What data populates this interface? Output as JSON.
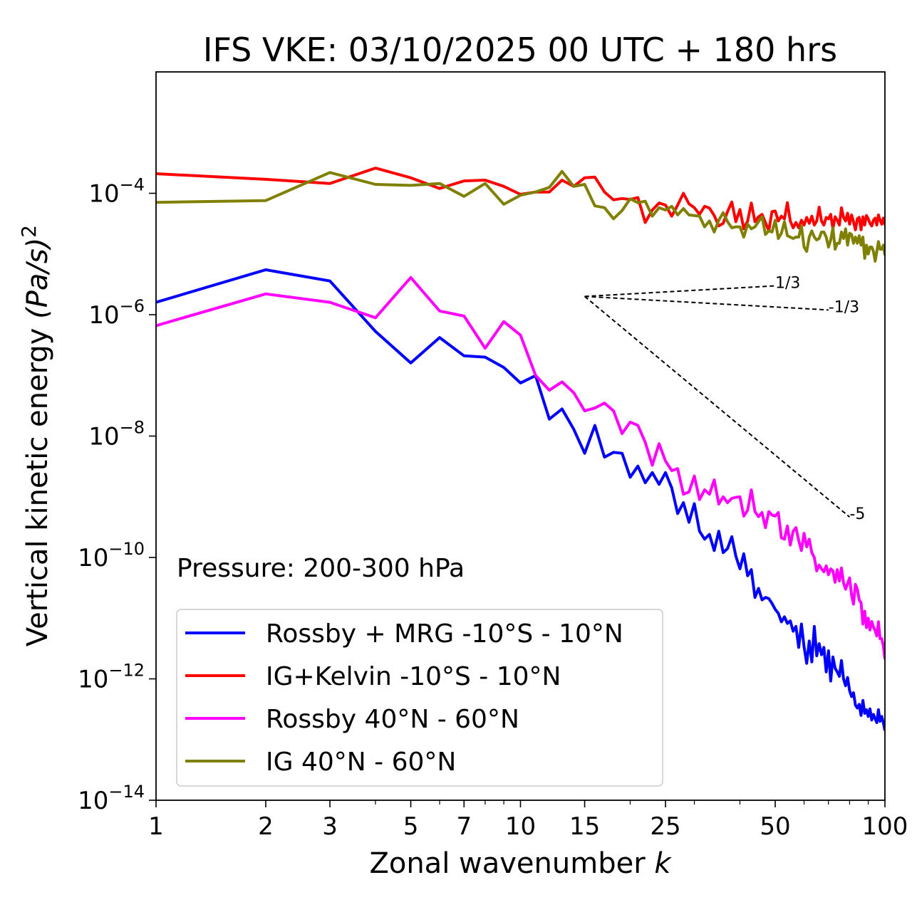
{
  "chart_data": {
    "type": "line",
    "title": "IFS VKE: 03/10/2025 00 UTC + 180 hrs",
    "xlabel_text": "Zonal wavenumber ",
    "xlabel_var": "k",
    "ylabel_text": "Vertical kinetic energy ",
    "ylabel_unit": "(Pa/s)",
    "ylabel_sup": "2",
    "xscale": "log",
    "yscale": "log",
    "xlim": [
      1,
      100
    ],
    "ylim": [
      1e-14,
      0.01
    ],
    "x_ticks": [
      1,
      2,
      3,
      5,
      7,
      10,
      15,
      25,
      50,
      100
    ],
    "x_tick_labels": [
      "1",
      "2",
      "3",
      "5",
      "7",
      "10",
      "15",
      "25",
      "50",
      "100"
    ],
    "y_ticks": [
      {
        "value": 1e-14,
        "base": "10",
        "exp": "−14"
      },
      {
        "value": 1e-12,
        "base": "10",
        "exp": "−12"
      },
      {
        "value": 1e-10,
        "base": "10",
        "exp": "−10"
      },
      {
        "value": 1e-08,
        "base": "10",
        "exp": "−8"
      },
      {
        "value": 1e-06,
        "base": "10",
        "exp": "−6"
      },
      {
        "value": 0.0001,
        "base": "10",
        "exp": "−4"
      }
    ],
    "annotation": "Pressure: 200-300 hPa",
    "legend_position": "lower-left",
    "series": [
      {
        "name": "Rossby + MRG -10°S - 10°N",
        "color": "#0000ff",
        "x": [
          1,
          2,
          3,
          4,
          5,
          6,
          7,
          8,
          9,
          10,
          11,
          12,
          13,
          14,
          15,
          16,
          17,
          18,
          19,
          20,
          21,
          22,
          23,
          24,
          25,
          26,
          27,
          28,
          29,
          30,
          31,
          32,
          33,
          34,
          35,
          36,
          37,
          38,
          39,
          40,
          41,
          42,
          43,
          44,
          45,
          46,
          47,
          48,
          49,
          50,
          51,
          52,
          53,
          54,
          55,
          56,
          57,
          58,
          59,
          60,
          61,
          62,
          63,
          64,
          65,
          66,
          67,
          68,
          69,
          70,
          71,
          72,
          73,
          74,
          75,
          76,
          77,
          78,
          79,
          80,
          81,
          82,
          83,
          84,
          85,
          86,
          87,
          88,
          89,
          90,
          91,
          92,
          93,
          94,
          95,
          96,
          97,
          98,
          99,
          100
        ],
        "y": [
          1.6e-06,
          5.5e-06,
          3.6e-06,
          5.3e-07,
          1.6e-07,
          4.2e-07,
          2.1e-07,
          2e-07,
          1.35e-07,
          7.5e-08,
          9.9e-08,
          1.9e-08,
          2.8e-08,
          1.3e-08,
          5.2e-09,
          1.5e-08,
          4.5e-09,
          5.4e-09,
          5.2e-09,
          2.1e-09,
          3.2e-09,
          1.7e-09,
          2.5e-09,
          1.6e-09,
          2.5e-09,
          1.4e-09,
          5.3e-10,
          8e-10,
          3.8e-10,
          7.7e-10,
          2.7e-10,
          2e-10,
          2.4e-10,
          1.3e-10,
          2.7e-10,
          1.2e-10,
          1.4e-10,
          2.2e-10,
          1.05e-10,
          6.5e-11,
          1.15e-10,
          5e-11,
          6.3e-11,
          2.2e-11,
          3.1e-11,
          2e-11,
          2.2e-11,
          2.1e-11,
          1.75e-11,
          1.4e-11,
          1.2e-11,
          8.7e-12,
          1.05e-11,
          8.2e-12,
          9e-12,
          6.1e-12,
          7.3e-12,
          3.3e-12,
          8e-12,
          3.4e-12,
          1.8e-12,
          4.2e-12,
          1.9e-12,
          7.3e-12,
          2.4e-12,
          3.8e-12,
          2.5e-12,
          3.3e-12,
          1.3e-12,
          2.9e-12,
          9.2e-13,
          2.3e-12,
          1.5e-12,
          1.3e-12,
          1.1e-12,
          2e-12,
          1e-12,
          7.7e-13,
          1.05e-12,
          6.4e-13,
          5.1e-13,
          5.9e-13,
          3.7e-13,
          3.3e-13,
          3.8e-13,
          2.5e-13,
          4.4e-13,
          2.7e-13,
          3.1e-13,
          2.4e-13,
          3.2e-13,
          2.1e-13,
          2.6e-13,
          2.2e-13,
          1.9e-13,
          3.1e-13,
          2e-13,
          2.4e-13,
          1.9e-13,
          1.4e-13
        ]
      },
      {
        "name": "IG+Kelvin -10°S - 10°N",
        "color": "#ff0000",
        "x": [
          1,
          2,
          3,
          4,
          5,
          6,
          7,
          8,
          9,
          10,
          11,
          12,
          13,
          14,
          15,
          16,
          17,
          18,
          19,
          20,
          21,
          22,
          23,
          24,
          25,
          26,
          27,
          28,
          29,
          30,
          31,
          32,
          33,
          34,
          35,
          36,
          37,
          38,
          39,
          40,
          41,
          42,
          43,
          44,
          45,
          46,
          47,
          48,
          49,
          50,
          51,
          52,
          53,
          54,
          55,
          56,
          57,
          58,
          59,
          60,
          61,
          62,
          63,
          64,
          65,
          66,
          67,
          68,
          69,
          70,
          71,
          72,
          73,
          74,
          75,
          76,
          77,
          78,
          79,
          80,
          81,
          82,
          83,
          84,
          85,
          86,
          87,
          88,
          89,
          90,
          91,
          92,
          93,
          94,
          95,
          96,
          97,
          98,
          99,
          100
        ],
        "y": [
          0.00021,
          0.00017,
          0.000145,
          0.00026,
          0.00018,
          0.00012,
          0.00016,
          0.000165,
          0.00013,
          9.6e-05,
          0.000105,
          0.000105,
          0.000165,
          0.00013,
          0.00018,
          0.000185,
          0.000105,
          7.8e-05,
          8.2e-05,
          7.9e-05,
          8.5e-05,
          3.3e-05,
          5.3e-05,
          6.9e-05,
          6.4e-05,
          4.2e-05,
          6.4e-05,
          0.0001,
          6.7e-05,
          5.8e-05,
          4.5e-05,
          6.1e-05,
          5.7e-05,
          4.3e-05,
          2.9e-05,
          3.2e-05,
          5e-05,
          7.2e-05,
          3.4e-05,
          5.4e-05,
          2.6e-05,
          3.5e-05,
          6.9e-05,
          3.4e-05,
          4.1e-05,
          4.5e-05,
          3.3e-05,
          2.4e-05,
          5e-05,
          5.1e-05,
          3.5e-05,
          4.2e-05,
          3.8e-05,
          7e-05,
          3.5e-05,
          2.7e-05,
          3.3e-05,
          2.7e-05,
          3.6e-05,
          3e-05,
          4e-05,
          3.2e-05,
          4.2e-05,
          3e-05,
          3.5e-05,
          5.9e-05,
          3.5e-05,
          3e-05,
          4e-05,
          3.8e-05,
          4.5e-05,
          2.6e-05,
          4.1e-05,
          3.6e-05,
          3e-05,
          5.8e-05,
          4e-05,
          3.5e-05,
          4.7e-05,
          3.1e-05,
          4.4e-05,
          3.4e-05,
          2.5e-05,
          3.8e-05,
          4e-05,
          2.5e-05,
          4.1e-05,
          3e-05,
          4.3e-05,
          3.8e-05,
          3.2e-05,
          2.9e-05,
          3.6e-05,
          3.9e-05,
          3e-05,
          4.4e-05,
          3.6e-05,
          3.1e-05,
          3.9e-05,
          3e-05
        ]
      },
      {
        "name": "Rossby 40°N - 60°N",
        "color": "#ff00ff",
        "x": [
          1,
          2,
          3,
          4,
          5,
          6,
          7,
          8,
          9,
          10,
          11,
          12,
          13,
          14,
          15,
          16,
          17,
          18,
          19,
          20,
          21,
          22,
          23,
          24,
          25,
          26,
          27,
          28,
          29,
          30,
          31,
          32,
          33,
          34,
          35,
          36,
          37,
          38,
          39,
          40,
          41,
          42,
          43,
          44,
          45,
          46,
          47,
          48,
          49,
          50,
          51,
          52,
          53,
          54,
          55,
          56,
          57,
          58,
          59,
          60,
          61,
          62,
          63,
          64,
          65,
          66,
          67,
          68,
          69,
          70,
          71,
          72,
          73,
          74,
          75,
          76,
          77,
          78,
          79,
          80,
          81,
          82,
          83,
          84,
          85,
          86,
          87,
          88,
          89,
          90,
          91,
          92,
          93,
          94,
          95,
          96,
          97,
          98,
          99,
          100
        ],
        "y": [
          6.6e-07,
          2.2e-06,
          1.6e-06,
          8.9e-07,
          4.1e-06,
          1.15e-06,
          9.5e-07,
          2.8e-07,
          7.7e-07,
          4.6e-07,
          1e-07,
          5.7e-08,
          7.8e-08,
          5.2e-08,
          2.6e-08,
          2.9e-08,
          3.5e-08,
          2.6e-08,
          1.1e-08,
          1.7e-08,
          1.5e-08,
          7.9e-09,
          3.3e-09,
          7.5e-09,
          3.9e-09,
          2.7e-09,
          2.9e-09,
          1.1e-09,
          1.2e-09,
          2.2e-09,
          9e-10,
          1.3e-09,
          1.1e-09,
          1.9e-09,
          7.6e-10,
          1e-09,
          8e-10,
          9.4e-10,
          9.8e-10,
          1e-09,
          4.8e-10,
          6e-10,
          1.3e-09,
          5.7e-10,
          4.7e-10,
          5.5e-10,
          3.1e-10,
          5.7e-10,
          5e-10,
          4.8e-10,
          5.5e-10,
          2.1e-10,
          2e-10,
          3.3e-10,
          1.6e-10,
          2.7e-10,
          3.1e-10,
          1.9e-10,
          1.3e-10,
          2.5e-10,
          1.5e-10,
          2e-10,
          1.2e-10,
          1e-10,
          6e-11,
          7.5e-11,
          6.5e-11,
          5.8e-11,
          7.3e-11,
          5.2e-11,
          6.5e-11,
          6e-11,
          3.9e-11,
          6.3e-11,
          4.1e-11,
          6.7e-11,
          3.8e-11,
          3e-11,
          3.7e-11,
          4.6e-11,
          2.4e-11,
          1.7e-11,
          3.6e-11,
          3e-11,
          2e-11,
          1.8e-11,
          8e-12,
          1.3e-11,
          7e-12,
          1e-11,
          6.4e-12,
          8.8e-12,
          7.2e-12,
          6.2e-12,
          5.1e-12,
          8.7e-12,
          4.6e-12,
          4.6e-12,
          3.5e-12,
          2.1e-12
        ]
      },
      {
        "name": "IG 40°N - 60°N",
        "color": "#808000",
        "x": [
          1,
          2,
          3,
          4,
          5,
          6,
          7,
          8,
          9,
          10,
          11,
          12,
          13,
          14,
          15,
          16,
          17,
          18,
          19,
          20,
          21,
          22,
          23,
          24,
          25,
          26,
          27,
          28,
          29,
          30,
          31,
          32,
          33,
          34,
          35,
          36,
          37,
          38,
          39,
          40,
          41,
          42,
          43,
          44,
          45,
          46,
          47,
          48,
          49,
          50,
          51,
          52,
          53,
          54,
          55,
          56,
          57,
          58,
          59,
          60,
          61,
          62,
          63,
          64,
          65,
          66,
          67,
          68,
          69,
          70,
          71,
          72,
          73,
          74,
          75,
          76,
          77,
          78,
          79,
          80,
          81,
          82,
          83,
          84,
          85,
          86,
          87,
          88,
          89,
          90,
          91,
          92,
          93,
          94,
          95,
          96,
          97,
          98,
          99,
          100
        ],
        "y": [
          7.1e-05,
          7.6e-05,
          0.00022,
          0.00014,
          0.000135,
          0.000145,
          8.9e-05,
          0.000145,
          6.6e-05,
          9.3e-05,
          0.000105,
          0.000125,
          0.00023,
          0.00013,
          0.00014,
          6.2e-05,
          5.8e-05,
          3.8e-05,
          5.2e-05,
          8.1e-05,
          7e-05,
          7.4e-05,
          4.2e-05,
          5.8e-05,
          5.3e-05,
          6.1e-05,
          4.4e-05,
          5.6e-05,
          4.4e-05,
          4.3e-05,
          4.2e-05,
          2.8e-05,
          3.5e-05,
          2.3e-05,
          3.6e-05,
          4.8e-05,
          3.4e-05,
          2.7e-05,
          2.8e-05,
          2.8e-05,
          1.9e-05,
          3.1e-05,
          2.6e-05,
          2.8e-05,
          3.4e-05,
          4.1e-05,
          2.1e-05,
          2.4e-05,
          2.3e-05,
          3.6e-05,
          1.8e-05,
          2.2e-05,
          3.4e-05,
          2e-05,
          1.9e-05,
          1.8e-05,
          1.9e-05,
          1.9e-05,
          2.9e-05,
          1.3e-05,
          1.1e-05,
          1.9e-05,
          2.4e-05,
          1.9e-05,
          1.7e-05,
          1.8e-05,
          2.3e-05,
          2.3e-05,
          1.9e-05,
          1.3e-05,
          1.7e-05,
          2.7e-05,
          1.2e-05,
          1.5e-05,
          1.5e-05,
          2.3e-05,
          1.8e-05,
          2.6e-05,
          1.4e-05,
          2.2e-05,
          2.1e-05,
          1.5e-05,
          1.9e-05,
          1.5e-05,
          2e-05,
          1.4e-05,
          1.9e-05,
          8.5e-06,
          1.4e-05,
          1e-05,
          1.3e-05,
          1.3e-05,
          1.1e-05,
          7.6e-06,
          1.1e-05,
          1.6e-05,
          1.2e-05,
          1.2e-05,
          1.4e-05,
          9.5e-06
        ]
      }
    ],
    "reference_lines": [
      {
        "label": "1/3",
        "slope": 0.3333,
        "x0": 15,
        "y0": 2e-06,
        "x1": 50
      },
      {
        "label": "-1/3",
        "slope": -0.3333,
        "x0": 15,
        "y0": 2e-06,
        "x1": 70
      },
      {
        "label": "-5",
        "slope": -5,
        "x0": 15,
        "y0": 2e-06,
        "x1": 80
      }
    ]
  }
}
